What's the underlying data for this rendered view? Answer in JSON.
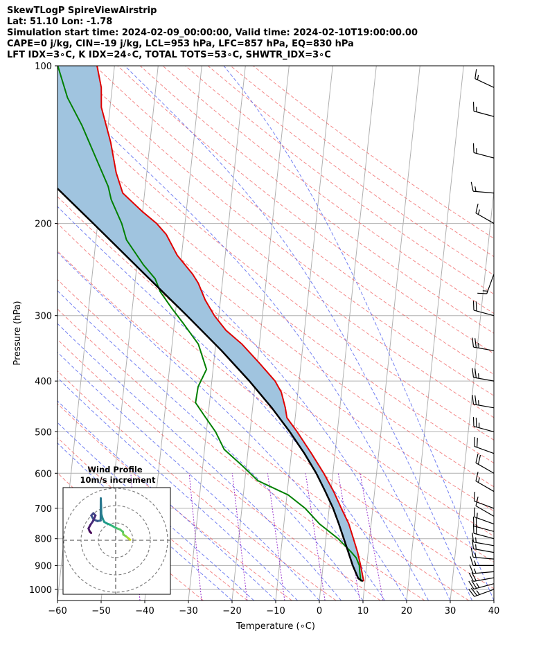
{
  "header": {
    "line1": "SkewTLogP SpireViewAirstrip",
    "line2": "Lat: 51.10   Lon: -1.78",
    "line3": "Simulation start time: 2024-02-09_00:00:00, Valid time: 2024-02-10T19:00:00.00",
    "line4": "CAPE=0 j/kg, CIN=-19 j/kg, LCL=953 hPa, LFC=857 hPa, EQ=830 hPa",
    "line5": "LFT IDX=3∘C, K IDX=24∘C, TOTAL TOTS=53∘C, SHWTR_IDX=3∘C"
  },
  "chart_data": [
    {
      "type": "skew-t log-p",
      "xlabel": "Temperature (∘C)",
      "ylabel": "Pressure (hPa)",
      "xlim": [
        -60,
        40
      ],
      "ylim": [
        1050,
        100
      ],
      "y_scale": "log",
      "x_ticks": [
        "−60",
        "−50",
        "−40",
        "−30",
        "−20",
        "−10",
        "0",
        "10",
        "20",
        "30",
        "40"
      ],
      "x_tick_values": [
        -60,
        -50,
        -40,
        -30,
        -20,
        -10,
        0,
        10,
        20,
        30,
        40
      ],
      "y_ticks": [
        100,
        200,
        300,
        400,
        500,
        600,
        700,
        800,
        900,
        1000
      ],
      "grid": true,
      "colors": {
        "temperature": "#e00000",
        "dewpoint": "#008000",
        "parcel": "#000000",
        "cape_fill": "#a0c4df",
        "dry_adiabat": "#f06060",
        "moist_adiabat": "#5a6af0",
        "mixing_ratio": "#9933cc",
        "isotherm": "#b0b0b0",
        "wind_barb": "#000000"
      },
      "temperature": [
        {
          "p": 965,
          "t": 9.7
        },
        {
          "p": 900,
          "t": 8.6
        },
        {
          "p": 850,
          "t": 7.6
        },
        {
          "p": 800,
          "t": 6.3
        },
        {
          "p": 750,
          "t": 4.9
        },
        {
          "p": 700,
          "t": 2.8
        },
        {
          "p": 650,
          "t": 0.6
        },
        {
          "p": 600,
          "t": -2.1
        },
        {
          "p": 550,
          "t": -5.4
        },
        {
          "p": 500,
          "t": -9.2
        },
        {
          "p": 470,
          "t": -11.9
        },
        {
          "p": 450,
          "t": -12.5
        },
        {
          "p": 420,
          "t": -13.8
        },
        {
          "p": 400,
          "t": -15.5
        },
        {
          "p": 370,
          "t": -19.5
        },
        {
          "p": 340,
          "t": -24.0
        },
        {
          "p": 320,
          "t": -28.0
        },
        {
          "p": 300,
          "t": -31.0
        },
        {
          "p": 280,
          "t": -33.5
        },
        {
          "p": 260,
          "t": -35.5
        },
        {
          "p": 250,
          "t": -37.0
        },
        {
          "p": 230,
          "t": -41.0
        },
        {
          "p": 210,
          "t": -44.0
        },
        {
          "p": 200,
          "t": -46.5
        },
        {
          "p": 190,
          "t": -50.0
        },
        {
          "p": 175,
          "t": -55.0
        },
        {
          "p": 160,
          "t": -57.0
        },
        {
          "p": 140,
          "t": -59.0
        },
        {
          "p": 120,
          "t": -62.0
        },
        {
          "p": 110,
          "t": -62.5
        },
        {
          "p": 100,
          "t": -64.0
        }
      ],
      "dewpoint": [
        {
          "p": 965,
          "t": 9.0
        },
        {
          "p": 920,
          "t": 8.5
        },
        {
          "p": 900,
          "t": 8.3
        },
        {
          "p": 870,
          "t": 7.4
        },
        {
          "p": 850,
          "t": 6.2
        },
        {
          "p": 800,
          "t": 2.8
        },
        {
          "p": 750,
          "t": -1.8
        },
        {
          "p": 700,
          "t": -5.5
        },
        {
          "p": 660,
          "t": -9.7
        },
        {
          "p": 620,
          "t": -17.0
        },
        {
          "p": 580,
          "t": -21.0
        },
        {
          "p": 540,
          "t": -25.5
        },
        {
          "p": 500,
          "t": -27.9
        },
        {
          "p": 470,
          "t": -30.5
        },
        {
          "p": 440,
          "t": -33.2
        },
        {
          "p": 410,
          "t": -33.0
        },
        {
          "p": 380,
          "t": -31.5
        },
        {
          "p": 340,
          "t": -34.0
        },
        {
          "p": 310,
          "t": -38.0
        },
        {
          "p": 290,
          "t": -41.0
        },
        {
          "p": 270,
          "t": -44.0
        },
        {
          "p": 255,
          "t": -45.5
        },
        {
          "p": 240,
          "t": -48.5
        },
        {
          "p": 215,
          "t": -53.0
        },
        {
          "p": 200,
          "t": -54.5
        },
        {
          "p": 180,
          "t": -57.5
        },
        {
          "p": 170,
          "t": -58.5
        },
        {
          "p": 150,
          "t": -62.0
        },
        {
          "p": 130,
          "t": -66.0
        },
        {
          "p": 115,
          "t": -70.0
        },
        {
          "p": 100,
          "t": -73.0
        }
      ],
      "parcel": [
        {
          "p": 965,
          "t": 9.5
        },
        {
          "p": 953,
          "t": 8.4
        },
        {
          "p": 900,
          "t": 6.8
        },
        {
          "p": 850,
          "t": 5.5
        },
        {
          "p": 800,
          "t": 4.1
        },
        {
          "p": 750,
          "t": 2.6
        },
        {
          "p": 700,
          "t": 0.9
        },
        {
          "p": 650,
          "t": -1.3
        },
        {
          "p": 600,
          "t": -3.8
        },
        {
          "p": 550,
          "t": -7.0
        },
        {
          "p": 500,
          "t": -10.9
        },
        {
          "p": 450,
          "t": -15.6
        },
        {
          "p": 400,
          "t": -21.4
        },
        {
          "p": 350,
          "t": -28.5
        },
        {
          "p": 300,
          "t": -37.3
        },
        {
          "p": 250,
          "t": -48.0
        },
        {
          "p": 200,
          "t": -61.0
        },
        {
          "p": 150,
          "t": -78.0
        },
        {
          "p": 120,
          "t": -90.0
        },
        {
          "p": 100,
          "t": -100.0
        }
      ],
      "winds": [
        {
          "p": 1000,
          "speed_kt": 25,
          "dir_deg": 250
        },
        {
          "p": 975,
          "speed_kt": 25,
          "dir_deg": 255
        },
        {
          "p": 950,
          "speed_kt": 20,
          "dir_deg": 260
        },
        {
          "p": 925,
          "speed_kt": 15,
          "dir_deg": 265
        },
        {
          "p": 900,
          "speed_kt": 15,
          "dir_deg": 270
        },
        {
          "p": 875,
          "speed_kt": 15,
          "dir_deg": 275
        },
        {
          "p": 850,
          "speed_kt": 15,
          "dir_deg": 280
        },
        {
          "p": 825,
          "speed_kt": 15,
          "dir_deg": 280
        },
        {
          "p": 800,
          "speed_kt": 20,
          "dir_deg": 285
        },
        {
          "p": 775,
          "speed_kt": 20,
          "dir_deg": 285
        },
        {
          "p": 750,
          "speed_kt": 15,
          "dir_deg": 290
        },
        {
          "p": 725,
          "speed_kt": 10,
          "dir_deg": 300
        },
        {
          "p": 700,
          "speed_kt": 10,
          "dir_deg": 290
        },
        {
          "p": 650,
          "speed_kt": 15,
          "dir_deg": 300
        },
        {
          "p": 600,
          "speed_kt": 20,
          "dir_deg": 300
        },
        {
          "p": 550,
          "speed_kt": 20,
          "dir_deg": 290
        },
        {
          "p": 500,
          "speed_kt": 25,
          "dir_deg": 285
        },
        {
          "p": 450,
          "speed_kt": 25,
          "dir_deg": 280
        },
        {
          "p": 400,
          "speed_kt": 25,
          "dir_deg": 280
        },
        {
          "p": 350,
          "speed_kt": 25,
          "dir_deg": 280
        },
        {
          "p": 300,
          "speed_kt": 20,
          "dir_deg": 285
        },
        {
          "p": 250,
          "speed_kt": 15,
          "dir_deg": 200
        },
        {
          "p": 200,
          "speed_kt": 15,
          "dir_deg": 300
        },
        {
          "p": 175,
          "speed_kt": 15,
          "dir_deg": 275
        },
        {
          "p": 150,
          "speed_kt": 15,
          "dir_deg": 285
        },
        {
          "p": 125,
          "speed_kt": 15,
          "dir_deg": 285
        },
        {
          "p": 110,
          "speed_kt": 15,
          "dir_deg": 295
        }
      ]
    },
    {
      "type": "hodograph",
      "title": "Wind Profile",
      "subtitle": "10m/s increment",
      "ring_increment_ms": 10,
      "colormap": "viridis",
      "points_ms": [
        {
          "u": 8.4,
          "v": 0.3
        },
        {
          "u": 7.5,
          "v": 1.0
        },
        {
          "u": 6.8,
          "v": 1.6
        },
        {
          "u": 5.8,
          "v": 2.4
        },
        {
          "u": 4.4,
          "v": 3.3
        },
        {
          "u": 4.2,
          "v": 4.9
        },
        {
          "u": 2.5,
          "v": 6.2
        },
        {
          "u": 0.2,
          "v": 7.1
        },
        {
          "u": -1.6,
          "v": 8.1
        },
        {
          "u": -3.3,
          "v": 9.0
        },
        {
          "u": -5.3,
          "v": 9.8
        },
        {
          "u": -6.6,
          "v": 10.6
        },
        {
          "u": -7.5,
          "v": 12.4
        },
        {
          "u": -8.3,
          "v": 15.0
        },
        {
          "u": -8.4,
          "v": 19.5
        },
        {
          "u": -8.6,
          "v": 24.2
        },
        {
          "u": -8.7,
          "v": 11.4
        },
        {
          "u": -10.5,
          "v": 11.1
        },
        {
          "u": -12.8,
          "v": 12.0
        },
        {
          "u": -14.1,
          "v": 14.3
        },
        {
          "u": -12.9,
          "v": 15.6
        },
        {
          "u": -11.7,
          "v": 14.3
        },
        {
          "u": -13.1,
          "v": 11.1
        },
        {
          "u": -14.6,
          "v": 8.9
        },
        {
          "u": -15.7,
          "v": 6.8
        },
        {
          "u": -15.0,
          "v": 5.1
        },
        {
          "u": -14.2,
          "v": 4.2
        }
      ]
    }
  ]
}
